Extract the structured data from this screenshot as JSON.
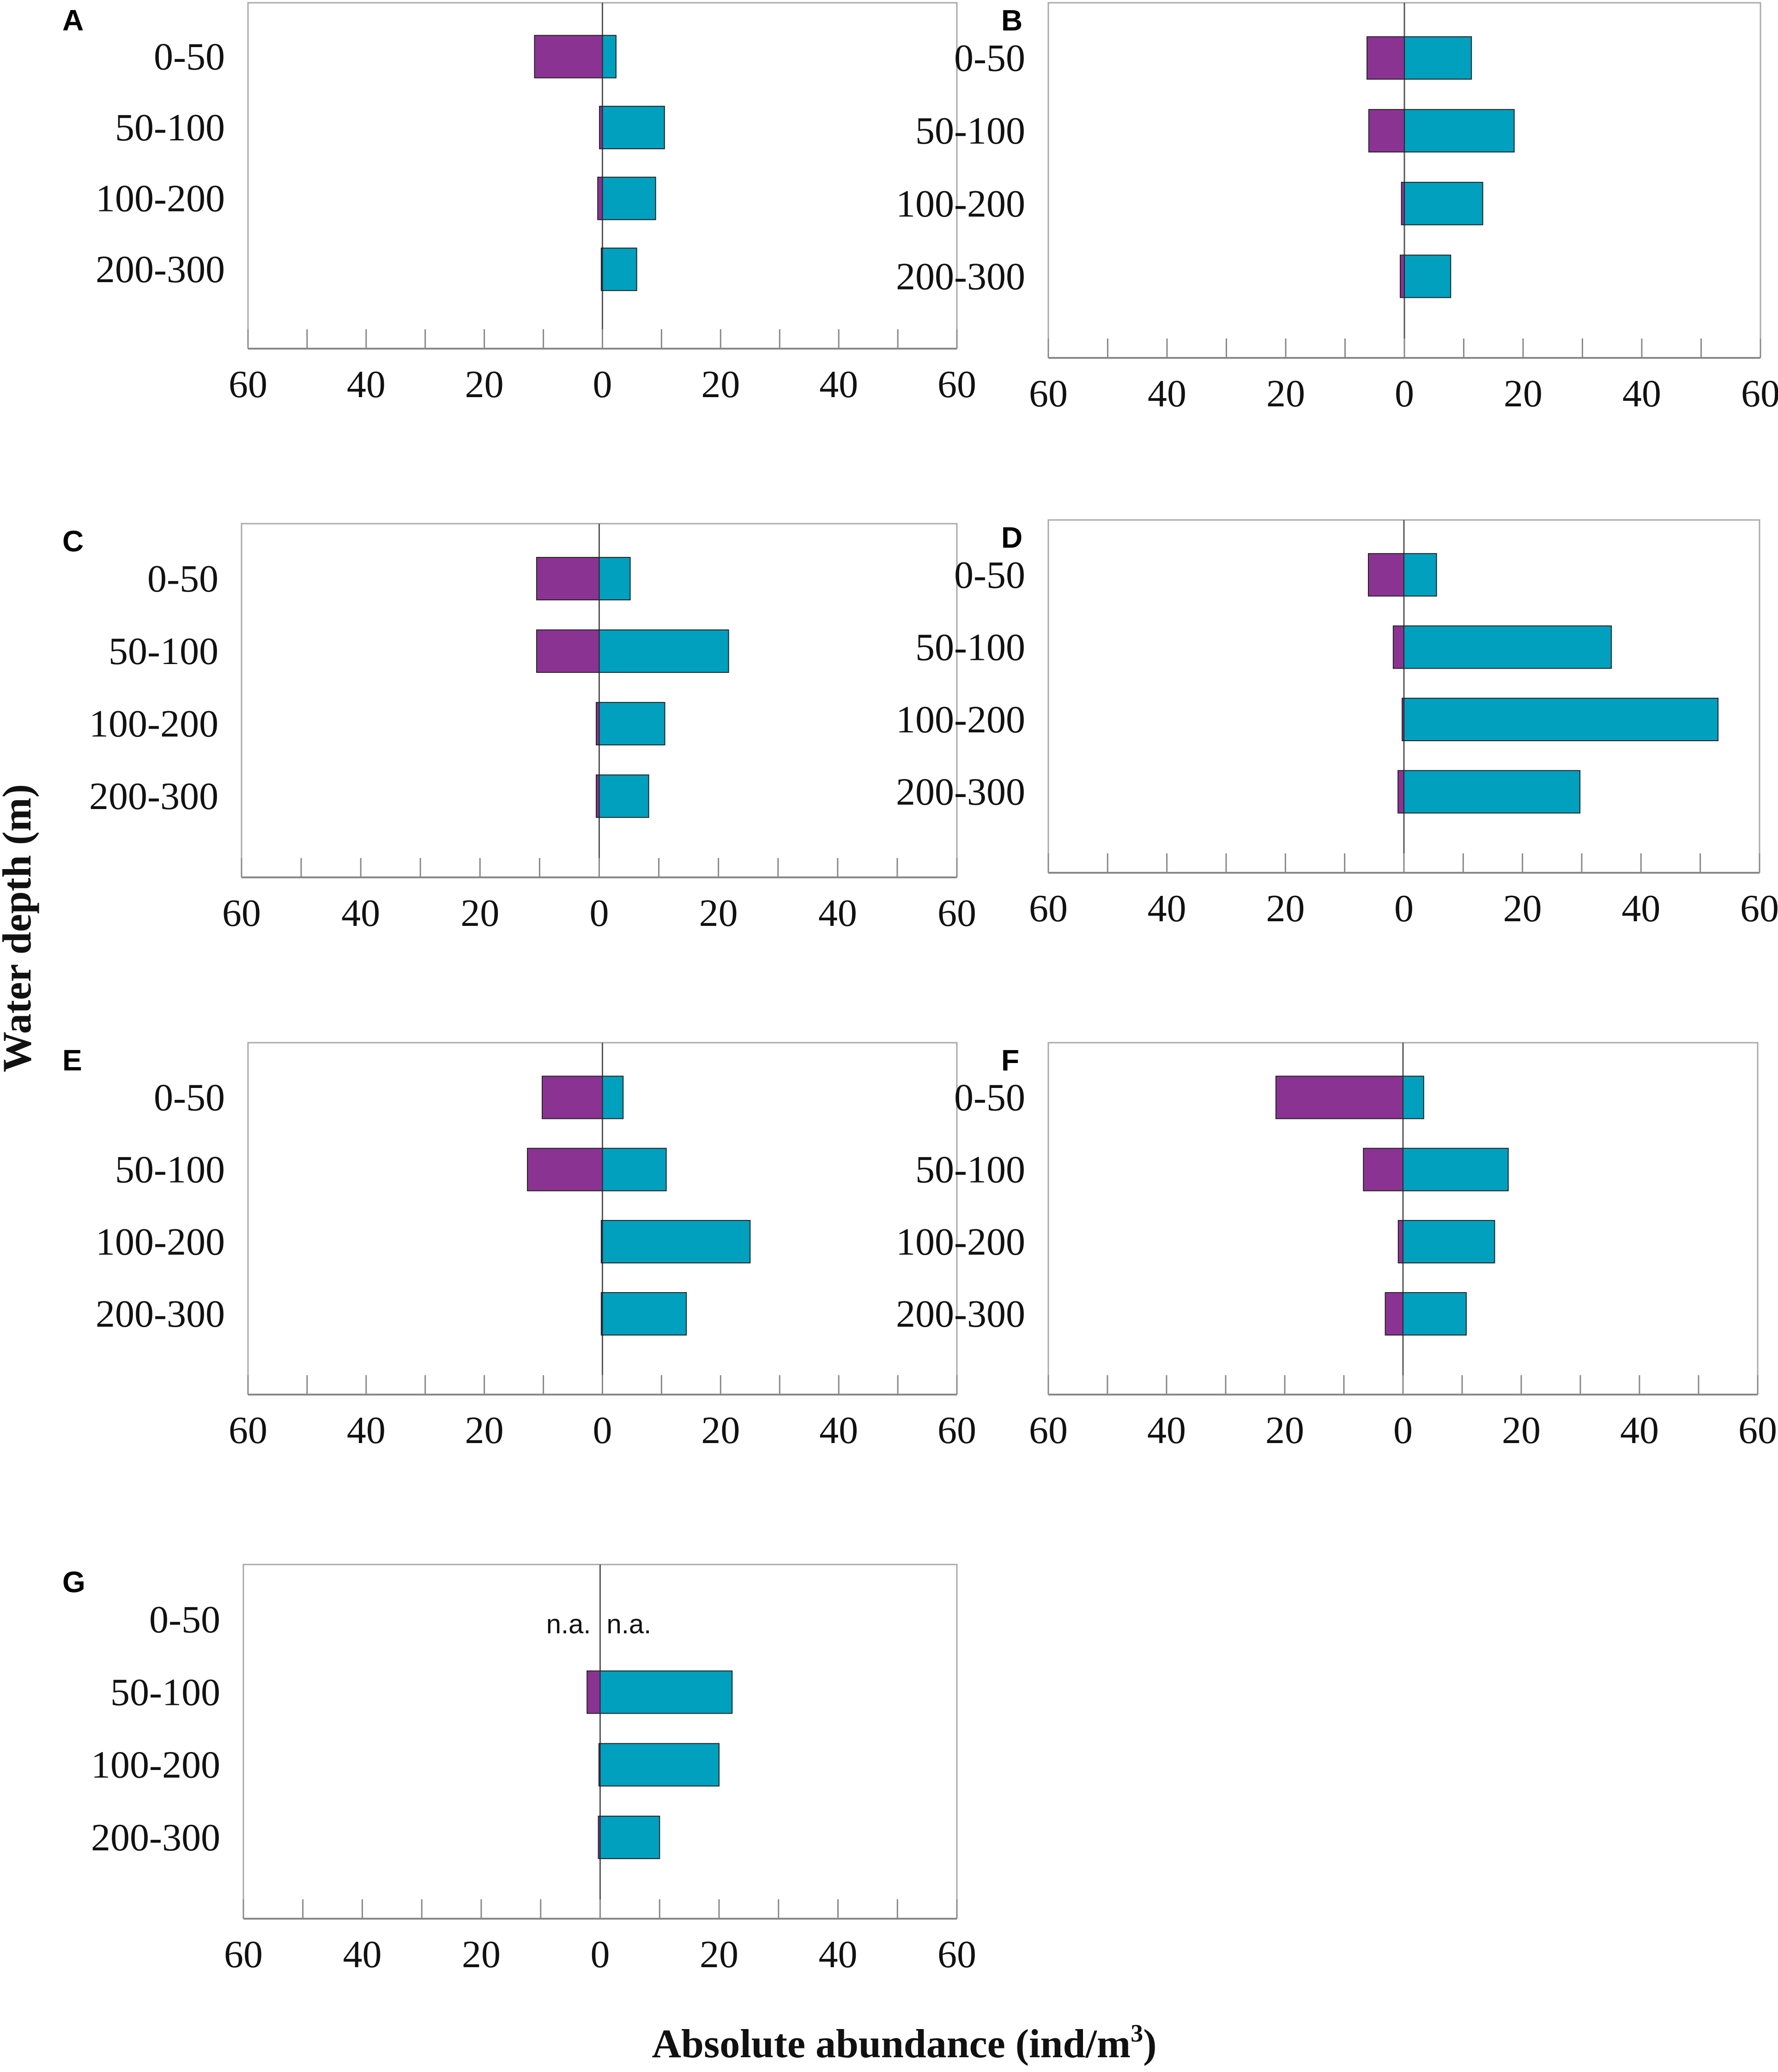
{
  "figure": {
    "y_title": "Water depth (m)",
    "x_title": "Absolute abundance (ind/m",
    "x_title_sup": "3",
    "x_title_end": ")"
  },
  "colors": {
    "negative_bar": "#8b3393",
    "positive_bar": "#00a0be",
    "axis": "#888888",
    "frame": "#aaaaaa"
  },
  "chart_data": [
    {
      "type": "bar",
      "panel": "A",
      "categories": [
        "0-50",
        "50-100",
        "100-200",
        "200-300"
      ],
      "series": [
        {
          "name": "left",
          "values": [
            -11.5,
            -0.5,
            -0.8,
            -0.2
          ]
        },
        {
          "name": "right",
          "values": [
            2.3,
            10.5,
            9.0,
            5.8
          ]
        }
      ],
      "xlim": [
        -60,
        60
      ],
      "tick_labels": [
        "60",
        "40",
        "20",
        "0",
        "20",
        "40",
        "60"
      ]
    },
    {
      "type": "bar",
      "panel": "B",
      "categories": [
        "0-50",
        "50-100",
        "100-200",
        "200-300"
      ],
      "series": [
        {
          "name": "left",
          "values": [
            -6.3,
            -6.0,
            -0.5,
            -0.7
          ]
        },
        {
          "name": "right",
          "values": [
            11.3,
            18.5,
            13.2,
            7.8
          ]
        }
      ],
      "xlim": [
        -60,
        60
      ],
      "tick_labels": [
        "60",
        "40",
        "20",
        "0",
        "20",
        "40",
        "60"
      ]
    },
    {
      "type": "bar",
      "panel": "C",
      "categories": [
        "0-50",
        "50-100",
        "100-200",
        "200-300"
      ],
      "series": [
        {
          "name": "left",
          "values": [
            -10.5,
            -10.5,
            -0.5,
            -0.5
          ]
        },
        {
          "name": "right",
          "values": [
            5.2,
            21.7,
            11.0,
            8.3
          ]
        }
      ],
      "xlim": [
        -60,
        60
      ],
      "tick_labels": [
        "60",
        "40",
        "20",
        "0",
        "20",
        "40",
        "60"
      ]
    },
    {
      "type": "bar",
      "panel": "D",
      "categories": [
        "0-50",
        "50-100",
        "100-200",
        "200-300"
      ],
      "series": [
        {
          "name": "left",
          "values": [
            -6.0,
            -1.8,
            -0.3,
            -1.0
          ]
        },
        {
          "name": "right",
          "values": [
            5.5,
            35.0,
            53.0,
            29.7
          ]
        }
      ],
      "xlim": [
        -60,
        60
      ],
      "tick_labels": [
        "60",
        "40",
        "20",
        "0",
        "20",
        "40",
        "60"
      ]
    },
    {
      "type": "bar",
      "panel": "E",
      "categories": [
        "0-50",
        "50-100",
        "100-200",
        "200-300"
      ],
      "series": [
        {
          "name": "left",
          "values": [
            -10.2,
            -12.7,
            -0.2,
            -0.2
          ]
        },
        {
          "name": "right",
          "values": [
            3.5,
            10.8,
            25.0,
            14.2
          ]
        }
      ],
      "xlim": [
        -60,
        60
      ],
      "tick_labels": [
        "60",
        "40",
        "20",
        "0",
        "20",
        "40",
        "60"
      ]
    },
    {
      "type": "bar",
      "panel": "F",
      "categories": [
        "0-50",
        "50-100",
        "100-200",
        "200-300"
      ],
      "series": [
        {
          "name": "left",
          "values": [
            -21.5,
            -6.7,
            -0.8,
            -3.0
          ]
        },
        {
          "name": "right",
          "values": [
            3.5,
            17.8,
            15.5,
            10.7
          ]
        }
      ],
      "xlim": [
        -60,
        60
      ],
      "tick_labels": [
        "60",
        "40",
        "20",
        "0",
        "20",
        "40",
        "60"
      ]
    },
    {
      "type": "bar",
      "panel": "G",
      "categories": [
        "0-50",
        "50-100",
        "100-200",
        "200-300"
      ],
      "series": [
        {
          "name": "left",
          "values": [
            null,
            -2.2,
            -0.2,
            -0.3
          ]
        },
        {
          "name": "right",
          "values": [
            null,
            22.2,
            20.0,
            10.0
          ]
        }
      ],
      "na_labels": [
        "n.a.",
        "n.a."
      ],
      "xlim": [
        -60,
        60
      ],
      "tick_labels": [
        "60",
        "40",
        "20",
        "0",
        "20",
        "40",
        "60"
      ]
    }
  ]
}
